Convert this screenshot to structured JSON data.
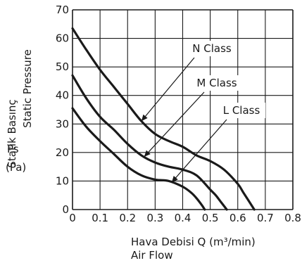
{
  "chart_data": {
    "type": "line",
    "xlim": [
      0,
      0.8
    ],
    "ylim": [
      0,
      70
    ],
    "x_ticks": [
      0,
      0.1,
      0.2,
      0.3,
      0.4,
      0.5,
      0.6,
      0.7,
      0.8
    ],
    "x_tick_labels": [
      "0",
      "0.1",
      "0.2",
      "0.3",
      "0.4",
      "0.5",
      "0.6",
      "0.7",
      "0.8"
    ],
    "y_ticks": [
      0,
      10,
      20,
      30,
      40,
      50,
      60,
      70
    ],
    "y_tick_labels": [
      "0",
      "10",
      "20",
      "30",
      "40",
      "50",
      "60",
      "70"
    ],
    "grid": true,
    "xlabel_line1": "Hava Debisi Q (m³/min)",
    "xlabel_line2": "Air Flow",
    "ylabel_line1": "Statik Basınç",
    "ylabel_line2": "Static Pressure",
    "ylabel_symbol": "Ps",
    "ylabel_unit": "(Pa)",
    "series": [
      {
        "name": "N Class",
        "x": [
          0,
          0.05,
          0.1,
          0.15,
          0.2,
          0.25,
          0.3,
          0.35,
          0.4,
          0.45,
          0.5,
          0.55,
          0.6,
          0.62,
          0.64,
          0.66
        ],
        "y": [
          63.5,
          56,
          49,
          43,
          37,
          31,
          26.5,
          24,
          22,
          19,
          17,
          14,
          9,
          6,
          3,
          0
        ]
      },
      {
        "name": "M Class",
        "x": [
          0,
          0.05,
          0.1,
          0.15,
          0.2,
          0.25,
          0.3,
          0.35,
          0.4,
          0.45,
          0.5,
          0.52,
          0.54,
          0.56
        ],
        "y": [
          47,
          39,
          32.5,
          28,
          23,
          19,
          16.5,
          15,
          14,
          12,
          7,
          5,
          2.5,
          0
        ]
      },
      {
        "name": "L Class",
        "x": [
          0,
          0.05,
          0.1,
          0.15,
          0.2,
          0.25,
          0.3,
          0.35,
          0.4,
          0.43,
          0.45,
          0.47,
          0.48
        ],
        "y": [
          35.5,
          29,
          24,
          19.5,
          15,
          12,
          10.5,
          10,
          8,
          6,
          4,
          1.5,
          0
        ]
      }
    ],
    "annotations": [
      {
        "text": "N Class",
        "arrow_to_x": 0.25,
        "arrow_to_y": 31
      },
      {
        "text": "M Class",
        "arrow_to_x": 0.26,
        "arrow_to_y": 18.5
      },
      {
        "text": "L Class",
        "arrow_to_x": 0.36,
        "arrow_to_y": 9.5
      }
    ]
  }
}
